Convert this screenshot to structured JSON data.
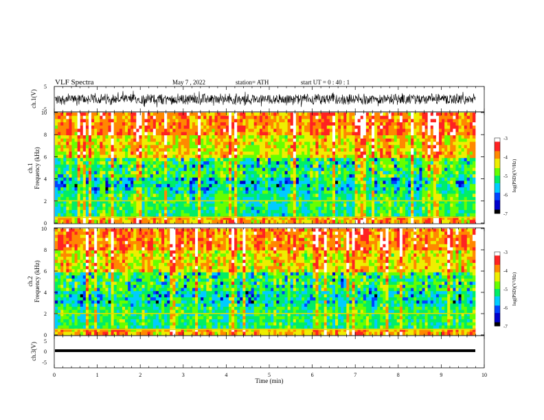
{
  "header": {
    "title": "VLF  Spectra",
    "date": "May 7  , 2022",
    "station": "station= ATH",
    "start": "start  UT  =    0  : 40 : 1"
  },
  "colors": {
    "spectrogram_ramp": [
      "#000000",
      "#0000cc",
      "#0044ff",
      "#00ccff",
      "#00ee66",
      "#66ff00",
      "#eeee00",
      "#ff8800",
      "#ff2222",
      "#ffffff"
    ]
  },
  "chart_data": [
    {
      "type": "line",
      "ylabel": "ch.1(V)",
      "ylim": [
        -5,
        5
      ],
      "yticks": [
        "5",
        "-5"
      ],
      "xlim": [
        0,
        10
      ],
      "description_band": [
        -2.5,
        2.5
      ]
    },
    {
      "type": "heatmap",
      "ylabel": [
        "ch.1",
        "Frequency  (kHz)"
      ],
      "ylim": [
        0,
        10
      ],
      "yticks": [
        "0",
        "2",
        "4",
        "6",
        "8",
        "10"
      ],
      "xlim": [
        0,
        10
      ],
      "colorbar": {
        "label": "log(PSD)(V²/Hz)",
        "ticks": [
          "-3",
          "-4",
          "-5",
          "-6",
          "-7"
        ],
        "range": [
          -7,
          -3
        ]
      }
    },
    {
      "type": "heatmap",
      "ylabel": [
        "ch.2",
        "Frequency  (kHz)"
      ],
      "ylim": [
        0,
        10
      ],
      "yticks": [
        "0",
        "2",
        "4",
        "6",
        "8",
        "10"
      ],
      "xlim": [
        0,
        10
      ],
      "colorbar": {
        "label": "log(PSD)(V²/Hz)",
        "ticks": [
          "-3",
          "-4",
          "-5",
          "-6",
          "-7"
        ],
        "range": [
          -7,
          -3
        ]
      }
    },
    {
      "type": "line",
      "ylabel": "ch.3(V)",
      "ylim": [
        -5,
        5
      ],
      "yticks": [
        "5",
        "0",
        "-5"
      ],
      "xlim": [
        0,
        10
      ],
      "xlabel": "Time  (min)",
      "xticks": [
        "0",
        "1",
        "2",
        "3",
        "4",
        "5",
        "6",
        "7",
        "8",
        "9",
        "10"
      ]
    }
  ]
}
